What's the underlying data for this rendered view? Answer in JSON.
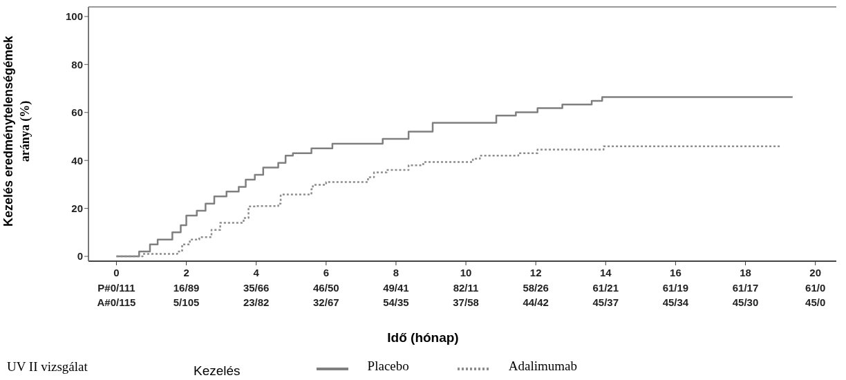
{
  "chart_data": {
    "type": "step",
    "xlabel": "Idő (hónap)",
    "ylabel": "Kezelés eredménytelenségémek\naránya (%)",
    "legend_title": "Kezelés",
    "legend": "bottom",
    "grid": false,
    "xlim": [
      -0.8,
      20.6
    ],
    "ylim": [
      -2,
      104
    ],
    "xticks": [
      0,
      2,
      4,
      6,
      8,
      10,
      12,
      14,
      16,
      18,
      20
    ],
    "yticks": [
      0,
      20,
      40,
      60,
      80,
      100
    ],
    "series": [
      {
        "name": "Placebo",
        "color": "#7f7f7f",
        "line_style": "solid",
        "x": [
          0,
          0.65,
          0.96,
          1.18,
          1.6,
          1.84,
          2.0,
          2.3,
          2.55,
          2.8,
          3.15,
          3.5,
          3.7,
          3.96,
          4.2,
          4.63,
          4.84,
          5.05,
          5.58,
          6.18,
          7.62,
          8.36,
          9.05,
          10.87,
          11.43,
          12.05,
          12.76,
          13.6,
          13.9,
          19.35
        ],
        "values": [
          0,
          2,
          5,
          7,
          10,
          13,
          17,
          19,
          22,
          25,
          27,
          29,
          32,
          34,
          37,
          39,
          42,
          43,
          45,
          47,
          49,
          52,
          55.7,
          58.7,
          60.1,
          61.8,
          63.3,
          64.8,
          66.4,
          66.4
        ]
      },
      {
        "name": "Adalimumab",
        "color": "#8c8c8c",
        "line_style": "dotted",
        "x": [
          0,
          0.75,
          1.74,
          1.88,
          2.1,
          2.37,
          2.72,
          2.97,
          3.64,
          3.78,
          3.99,
          4.63,
          4.7,
          5.58,
          5.62,
          6.0,
          7.2,
          7.37,
          7.73,
          8.36,
          8.78,
          10.2,
          10.4,
          11.5,
          12.05,
          13.94,
          18.98
        ],
        "values": [
          0,
          1,
          2,
          5,
          7,
          8,
          11,
          14,
          16,
          20.8,
          21,
          22,
          25.8,
          28,
          29.8,
          31,
          33,
          35,
          36,
          38,
          39.3,
          40.7,
          42,
          43,
          44.5,
          45.9,
          45.9
        ]
      }
    ],
    "annotations": [
      "UV II vizsgálat",
      "P#0/111",
      "16/89",
      "35/66",
      "46/50",
      "49/41",
      "82/11",
      "58/26",
      "61/21",
      "61/19",
      "61/17",
      "61/0",
      "A#0/115",
      "5/105",
      "23/82",
      "32/67",
      "54/35",
      "37/58",
      "44/42",
      "45/37",
      "45/34",
      "45/30",
      "45/0"
    ]
  }
}
